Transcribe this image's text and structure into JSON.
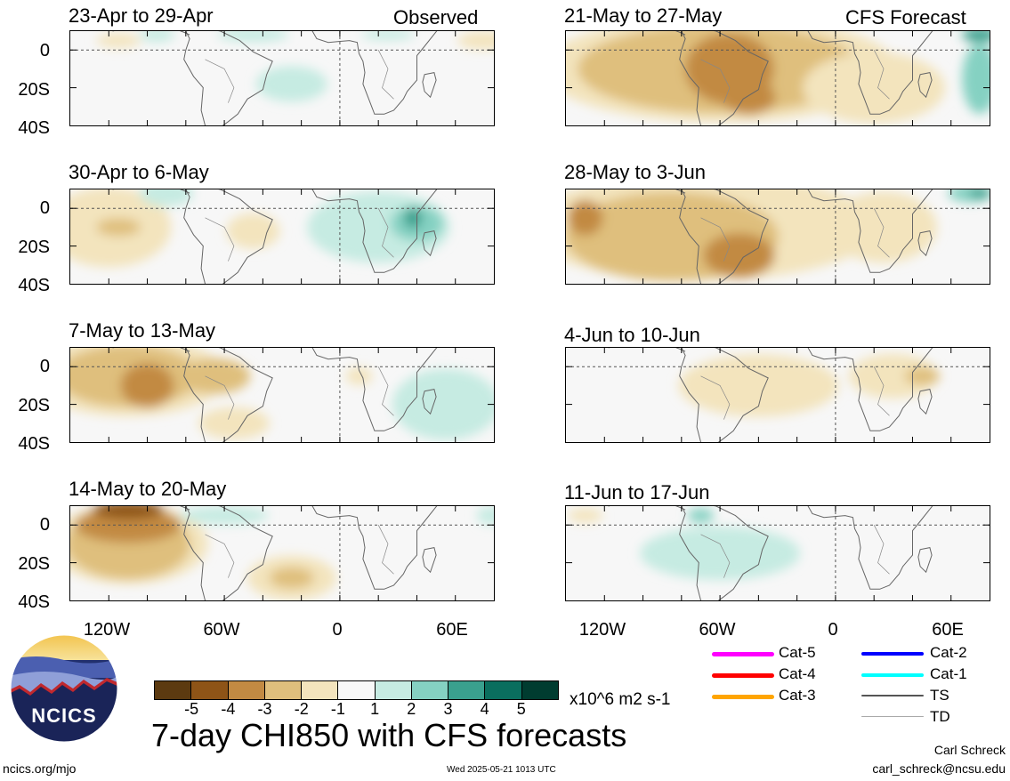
{
  "header": {
    "observed_label": "Observed",
    "forecast_label": "CFS Forecast"
  },
  "panels": {
    "left": [
      {
        "title": "23-Apr to 29-Apr"
      },
      {
        "title": "30-Apr to 6-May"
      },
      {
        "title": "7-May to 13-May"
      },
      {
        "title": "14-May to 20-May"
      }
    ],
    "right": [
      {
        "title": "21-May to 27-May"
      },
      {
        "title": "28-May to 3-Jun"
      },
      {
        "title": "4-Jun to 10-Jun"
      },
      {
        "title": "11-Jun to 17-Jun"
      }
    ]
  },
  "axes": {
    "lat_labels": [
      "0",
      "20S",
      "40S"
    ],
    "lon_labels": [
      "120W",
      "60W",
      "0",
      "60E"
    ]
  },
  "colorbar": {
    "colors": [
      "#5c3a10",
      "#8e5417",
      "#c28a43",
      "#dfbf7d",
      "#f3e4bd",
      "#f8f8f8",
      "#c6ebe2",
      "#85d1c2",
      "#3aa08e",
      "#0a6e5e",
      "#003c30"
    ],
    "labels": [
      "-5",
      "-4",
      "-3",
      "-2",
      "-1",
      "1",
      "2",
      "3",
      "4",
      "5"
    ],
    "units": "x10^6 m2 s-1"
  },
  "legend": {
    "col1": [
      {
        "label": "Cat-5",
        "color": "#ff00ff"
      },
      {
        "label": "Cat-4",
        "color": "#ff0000"
      },
      {
        "label": "Cat-3",
        "color": "#ffa500"
      }
    ],
    "col2": [
      {
        "label": "Cat-2",
        "color": "#0000ff"
      },
      {
        "label": "Cat-1",
        "color": "#00ffff"
      },
      {
        "label": "TS",
        "color": "#555555"
      },
      {
        "label": "TD",
        "color": "#aaaaaa"
      }
    ]
  },
  "footer": {
    "title": "7-day CHI850 with CFS forecasts",
    "site": "ncics.org/mjo",
    "timestamp": "Wed 2025-05-21 1013 UTC",
    "author": "Carl Schreck",
    "email": "carl_schreck@ncsu.edu",
    "logo_text": "NCICS"
  }
}
